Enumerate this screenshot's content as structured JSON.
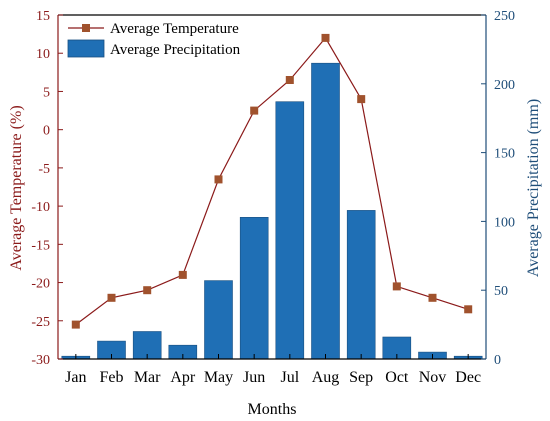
{
  "chart_data": {
    "type": "bar",
    "categories": [
      "Jan",
      "Feb",
      "Mar",
      "Apr",
      "May",
      "Jun",
      "Jul",
      "Aug",
      "Sep",
      "Oct",
      "Nov",
      "Dec"
    ],
    "xlabel": "Months",
    "series": [
      {
        "name": "Average Temperature",
        "type": "line",
        "axis": "left",
        "color": "#8b1a1a",
        "marker_color": "#a0522d",
        "values": [
          -25.5,
          -22.0,
          -21.0,
          -19.0,
          -6.5,
          2.5,
          6.5,
          12.0,
          4.0,
          -20.5,
          -22.0,
          -23.5
        ]
      },
      {
        "name": "Average Precipitation",
        "type": "bar",
        "axis": "right",
        "color": "#1f6fb5",
        "values": [
          2,
          13,
          20,
          10,
          57,
          103,
          187,
          215,
          108,
          16,
          5,
          2
        ]
      }
    ],
    "y_left": {
      "label": "Average Temperature (%)",
      "range": [
        -30,
        15
      ],
      "ticks": [
        15,
        10,
        5,
        0,
        -5,
        -10,
        -15,
        -20,
        -25,
        -30
      ],
      "color": "#8b1a1a"
    },
    "y_right": {
      "label": "Average Precipitation (mm)",
      "range": [
        0,
        250
      ],
      "ticks": [
        250,
        200,
        150,
        100,
        50,
        0
      ],
      "color": "#1f4e79"
    },
    "legend": {
      "placement": "top-left",
      "entries": [
        "Average Temperature",
        "Average Precipitation"
      ]
    },
    "grid": false
  }
}
